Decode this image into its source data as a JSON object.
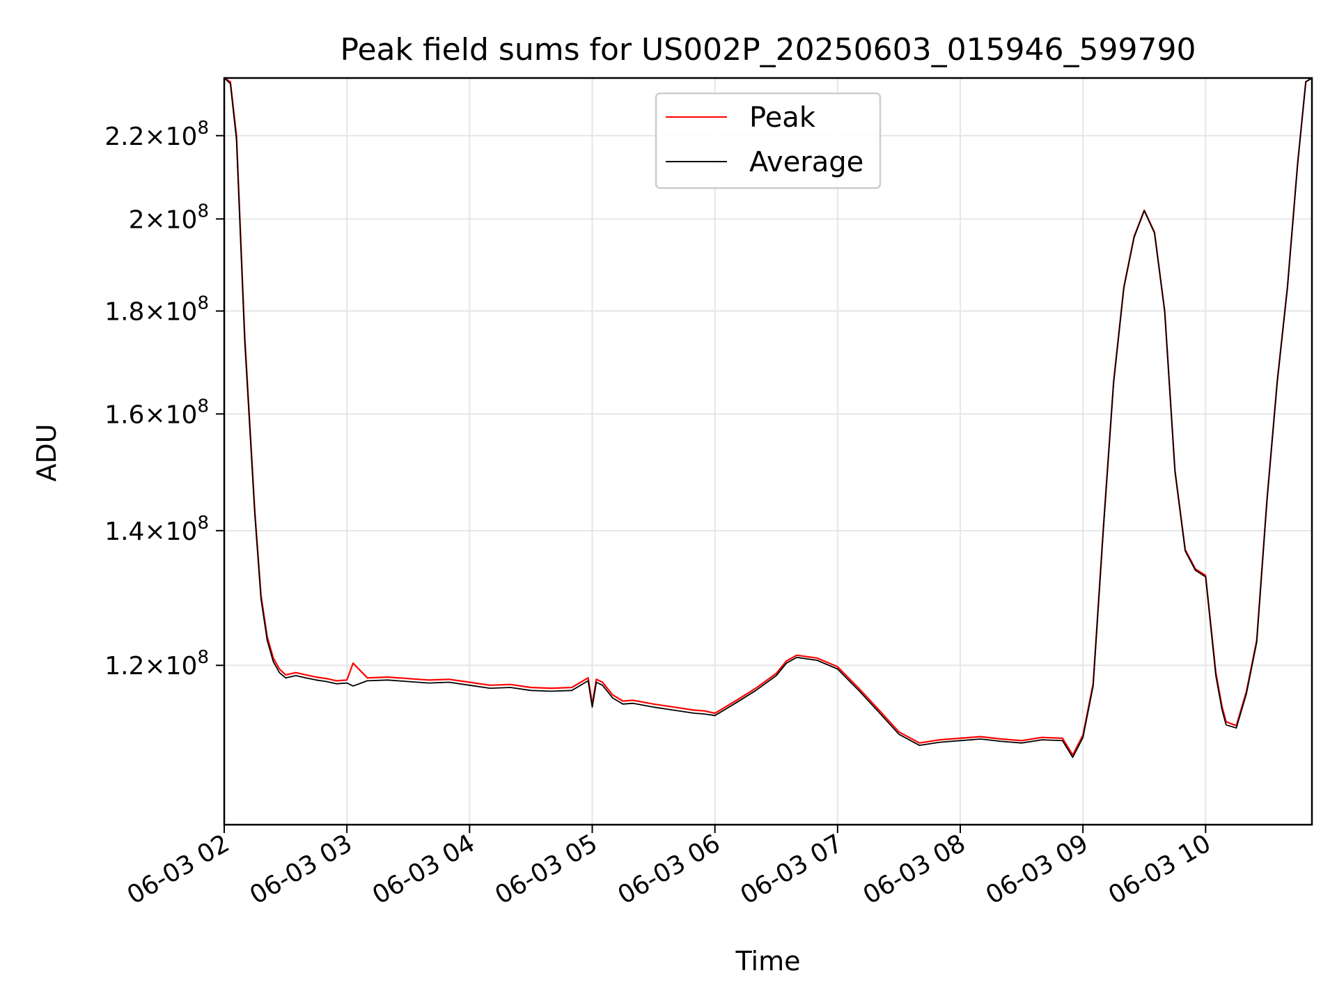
{
  "chart_data": {
    "type": "line",
    "title": "Peak field sums for US002P_20250603_015946_599790",
    "xlabel": "Time",
    "ylabel": "ADU",
    "y_scale": "log",
    "grid": true,
    "legend_position": "top-center",
    "xlim": [
      "2025-06-03 02:00",
      "2025-06-03 10:52"
    ],
    "ylim": [
      100000000,
      235000000
    ],
    "x_ticks": [
      {
        "t": "2025-06-03 02:00",
        "label": "06-03 02"
      },
      {
        "t": "2025-06-03 03:00",
        "label": "06-03 03"
      },
      {
        "t": "2025-06-03 04:00",
        "label": "06-03 04"
      },
      {
        "t": "2025-06-03 05:00",
        "label": "06-03 05"
      },
      {
        "t": "2025-06-03 06:00",
        "label": "06-03 06"
      },
      {
        "t": "2025-06-03 07:00",
        "label": "06-03 07"
      },
      {
        "t": "2025-06-03 08:00",
        "label": "06-03 08"
      },
      {
        "t": "2025-06-03 09:00",
        "label": "06-03 09"
      },
      {
        "t": "2025-06-03 10:00",
        "label": "06-03 10"
      }
    ],
    "y_ticks": [
      {
        "value": 120000000,
        "mantissa": "1.2",
        "exp": "8"
      },
      {
        "value": 140000000,
        "mantissa": "1.4",
        "exp": "8"
      },
      {
        "value": 160000000,
        "mantissa": "1.6",
        "exp": "8"
      },
      {
        "value": 180000000,
        "mantissa": "1.8",
        "exp": "8"
      },
      {
        "value": 200000000,
        "mantissa": "2",
        "exp": "8"
      },
      {
        "value": 220000000,
        "mantissa": "2.2",
        "exp": "8"
      }
    ],
    "x": [
      "2025-06-03 02:00",
      "2025-06-03 02:03",
      "2025-06-03 02:06",
      "2025-06-03 02:10",
      "2025-06-03 02:15",
      "2025-06-03 02:18",
      "2025-06-03 02:21",
      "2025-06-03 02:24",
      "2025-06-03 02:27",
      "2025-06-03 02:30",
      "2025-06-03 02:35",
      "2025-06-03 02:40",
      "2025-06-03 02:45",
      "2025-06-03 02:50",
      "2025-06-03 02:55",
      "2025-06-03 03:00",
      "2025-06-03 03:03",
      "2025-06-03 03:10",
      "2025-06-03 03:20",
      "2025-06-03 03:30",
      "2025-06-03 03:40",
      "2025-06-03 03:50",
      "2025-06-03 04:00",
      "2025-06-03 04:10",
      "2025-06-03 04:20",
      "2025-06-03 04:30",
      "2025-06-03 04:40",
      "2025-06-03 04:50",
      "2025-06-03 04:58",
      "2025-06-03 05:00",
      "2025-06-03 05:02",
      "2025-06-03 05:05",
      "2025-06-03 05:10",
      "2025-06-03 05:15",
      "2025-06-03 05:20",
      "2025-06-03 05:30",
      "2025-06-03 05:40",
      "2025-06-03 05:50",
      "2025-06-03 05:55",
      "2025-06-03 06:00",
      "2025-06-03 06:10",
      "2025-06-03 06:20",
      "2025-06-03 06:30",
      "2025-06-03 06:35",
      "2025-06-03 06:40",
      "2025-06-03 06:50",
      "2025-06-03 07:00",
      "2025-06-03 07:10",
      "2025-06-03 07:20",
      "2025-06-03 07:30",
      "2025-06-03 07:40",
      "2025-06-03 07:50",
      "2025-06-03 08:00",
      "2025-06-03 08:10",
      "2025-06-03 08:20",
      "2025-06-03 08:30",
      "2025-06-03 08:40",
      "2025-06-03 08:50",
      "2025-06-03 08:55",
      "2025-06-03 09:00",
      "2025-06-03 09:05",
      "2025-06-03 09:10",
      "2025-06-03 09:15",
      "2025-06-03 09:20",
      "2025-06-03 09:25",
      "2025-06-03 09:30",
      "2025-06-03 09:35",
      "2025-06-03 09:40",
      "2025-06-03 09:45",
      "2025-06-03 09:50",
      "2025-06-03 09:55",
      "2025-06-03 10:00",
      "2025-06-03 10:05",
      "2025-06-03 10:08",
      "2025-06-03 10:10",
      "2025-06-03 10:15",
      "2025-06-03 10:20",
      "2025-06-03 10:25",
      "2025-06-03 10:30",
      "2025-06-03 10:35",
      "2025-06-03 10:40",
      "2025-06-03 10:45",
      "2025-06-03 10:49",
      "2025-06-03 10:52"
    ],
    "series": [
      {
        "name": "Peak",
        "color": "#ff0000",
        "values": [
          235000000,
          234000000,
          220000000,
          175000000,
          143000000,
          130000000,
          124000000,
          121000000,
          119500000,
          118700000,
          119000000,
          118700000,
          118400000,
          118200000,
          117900000,
          118000000,
          120300000,
          118300000,
          118400000,
          118200000,
          118000000,
          118100000,
          117700000,
          117300000,
          117400000,
          117000000,
          116900000,
          117000000,
          118300000,
          114800000,
          118100000,
          117700000,
          116000000,
          115200000,
          115300000,
          114800000,
          114400000,
          114000000,
          113900000,
          113600000,
          115200000,
          116900000,
          118900000,
          120600000,
          121400000,
          121000000,
          119800000,
          117000000,
          114100000,
          111200000,
          109800000,
          110200000,
          110400000,
          110600000,
          110300000,
          110100000,
          110500000,
          110400000,
          108300000,
          110800000,
          117500000,
          140500000,
          166000000,
          185000000,
          196000000,
          202000000,
          197000000,
          180000000,
          150000000,
          137000000,
          134000000,
          133000000,
          119000000,
          114500000,
          112500000,
          112000000,
          116500000,
          123500000,
          145000000,
          166000000,
          185000000,
          213000000,
          234000000,
          235000000
        ]
      },
      {
        "name": "Average",
        "color": "#000000",
        "values": [
          235000000,
          233500000,
          219000000,
          174000000,
          142500000,
          129500000,
          123500000,
          120500000,
          119000000,
          118300000,
          118600000,
          118300000,
          118000000,
          117800000,
          117500000,
          117600000,
          117200000,
          117900000,
          118000000,
          117800000,
          117600000,
          117700000,
          117300000,
          116900000,
          117000000,
          116600000,
          116500000,
          116600000,
          117900000,
          114400000,
          117700000,
          117300000,
          115600000,
          114800000,
          114900000,
          114400000,
          114000000,
          113600000,
          113500000,
          113300000,
          114900000,
          116600000,
          118600000,
          120300000,
          121100000,
          120700000,
          119500000,
          116700000,
          113800000,
          110900000,
          109500000,
          109900000,
          110100000,
          110300000,
          110000000,
          109800000,
          110200000,
          110100000,
          108000000,
          110500000,
          117200000,
          140200000,
          165800000,
          184800000,
          195800000,
          201900000,
          196800000,
          179800000,
          149800000,
          136800000,
          133800000,
          132800000,
          118600000,
          114100000,
          112100000,
          111700000,
          116200000,
          123200000,
          144800000,
          165800000,
          184800000,
          212800000,
          234000000,
          235000000
        ]
      }
    ]
  }
}
